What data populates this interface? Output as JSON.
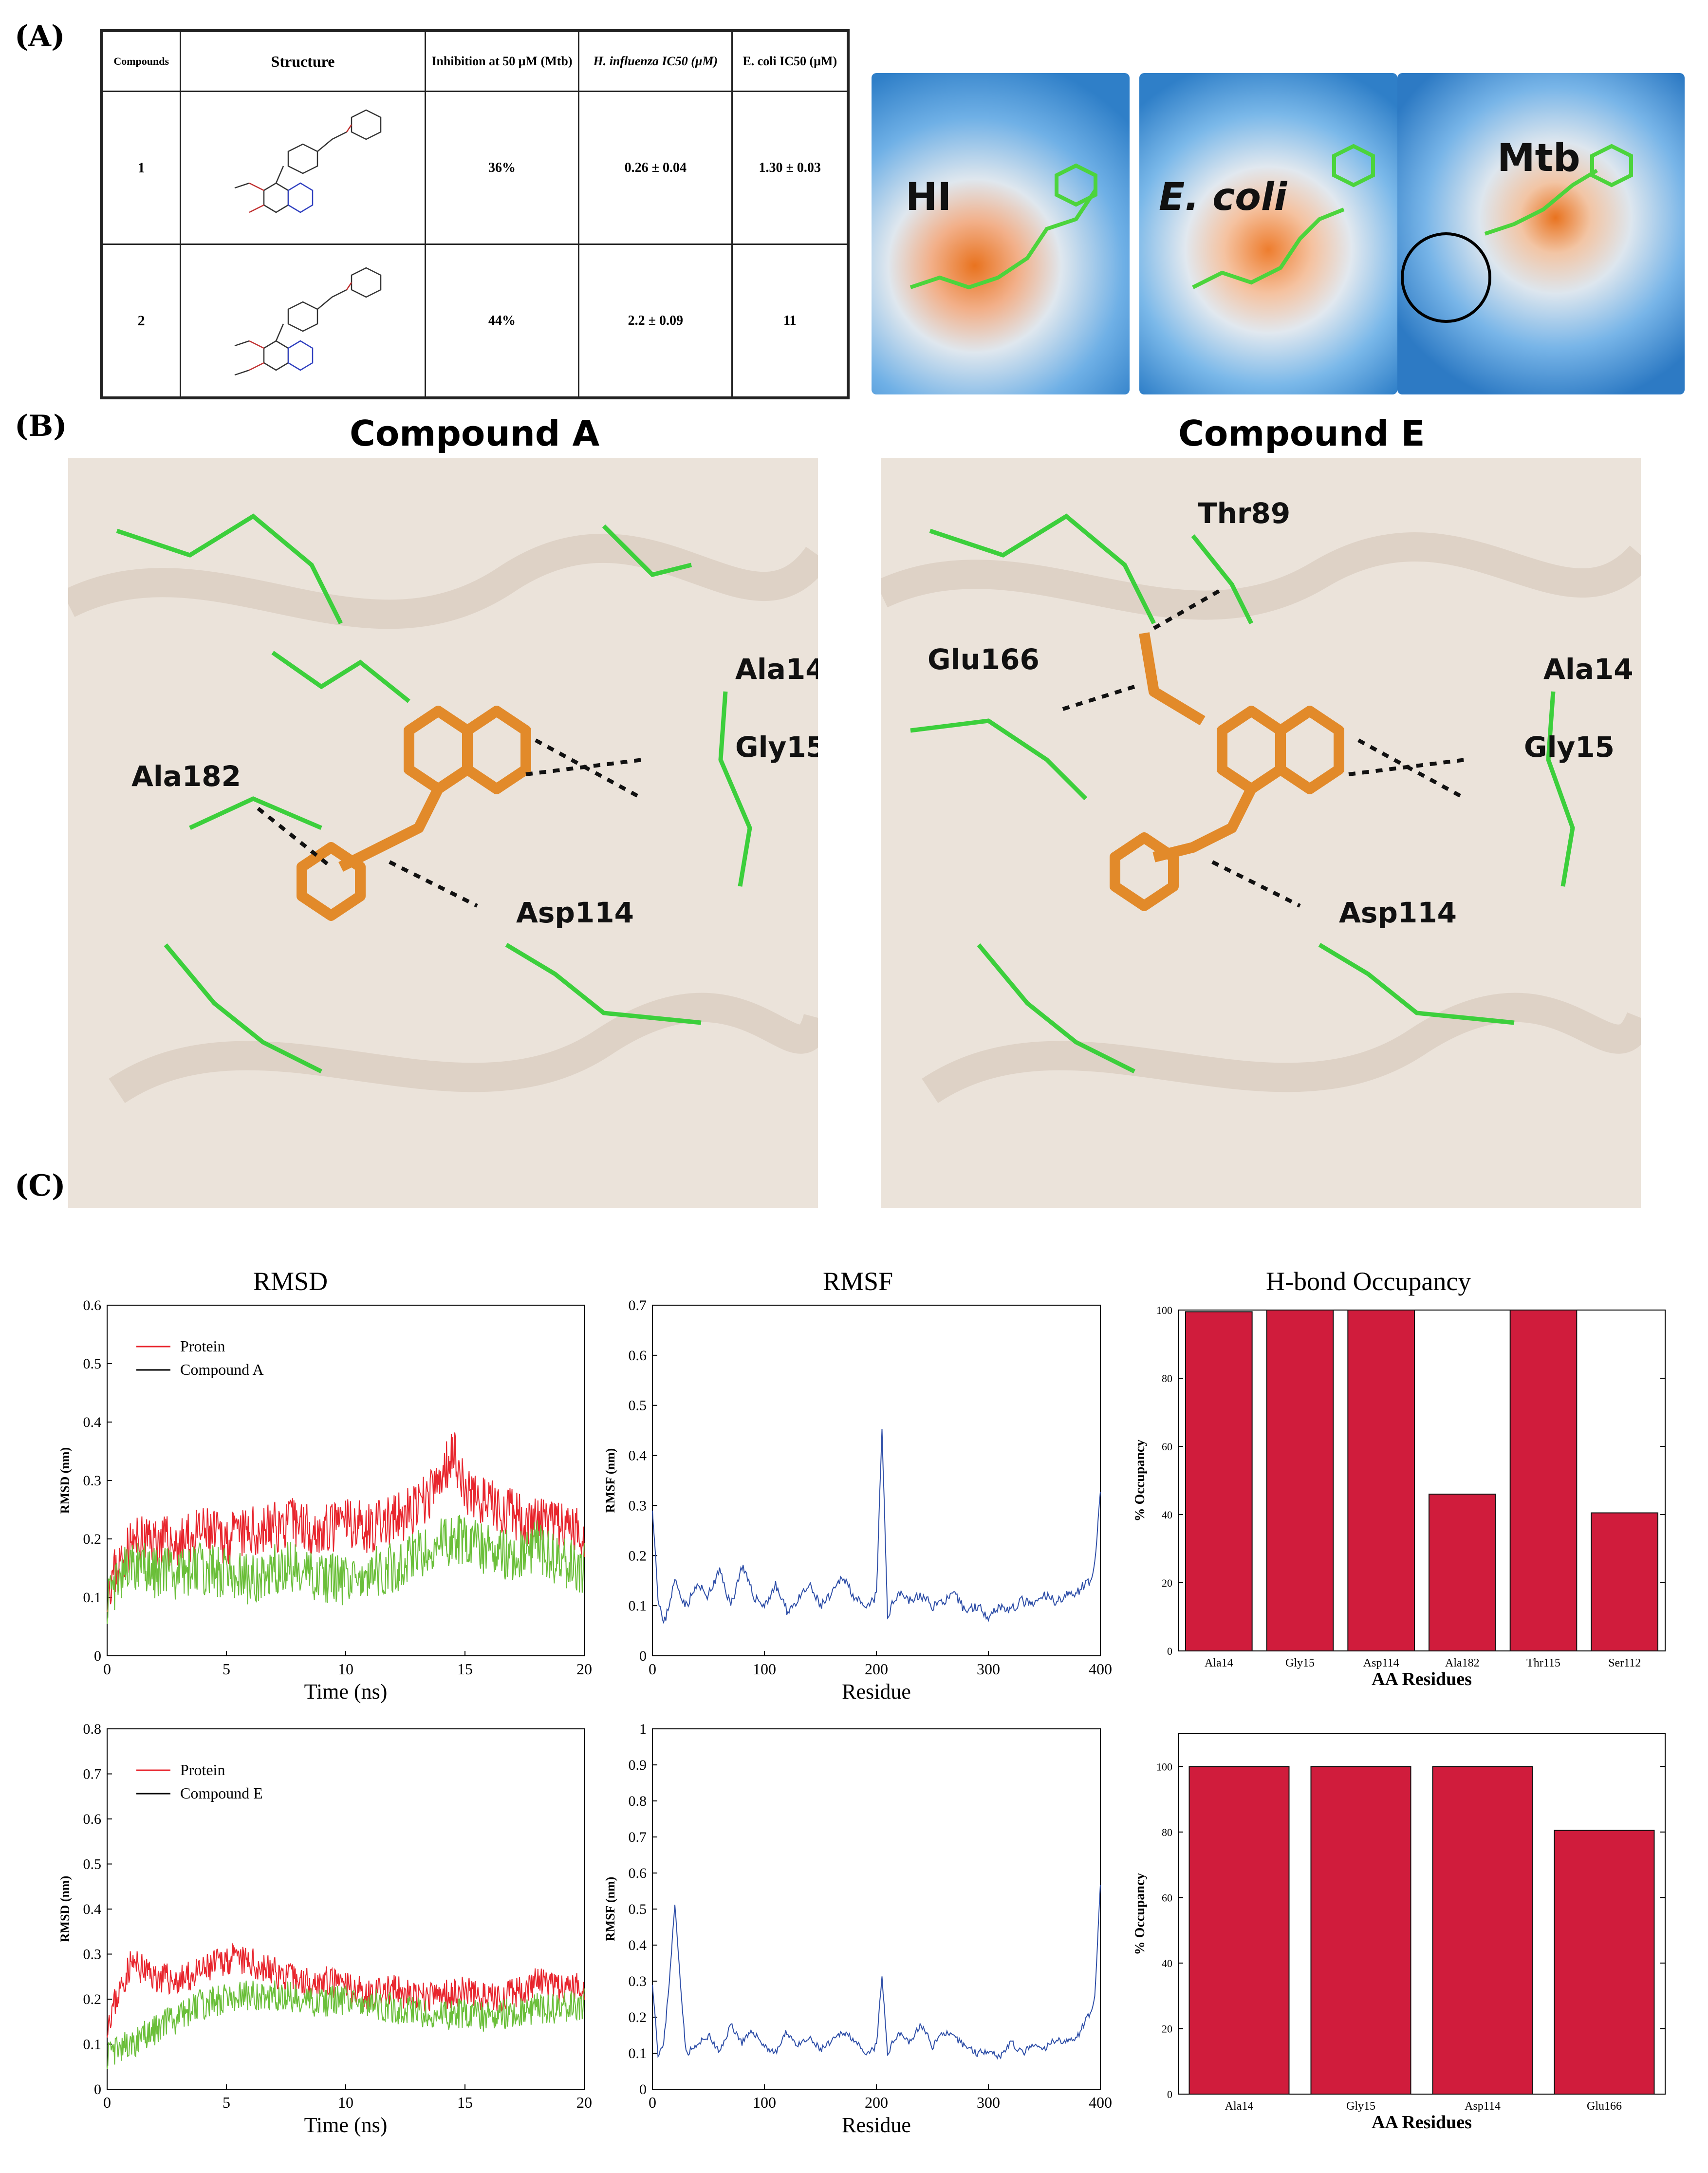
{
  "panel_labels": {
    "a": "(A)",
    "b": "(B)",
    "c": "(C)"
  },
  "table": {
    "headers": [
      "Compounds",
      "Structure",
      "Inhibition at 50 μM (Mtb)",
      "H. influenza IC50 (μM)",
      "E. coli IC50 (μM)"
    ],
    "rows": [
      {
        "compound": "1",
        "inhibition": "36%",
        "hi_ic50": "0.26 ± 0.04",
        "ecoli_ic50": "1.30 ± 0.03"
      },
      {
        "compound": "2",
        "inhibition": "44%",
        "hi_ic50": "2.2 ± 0.09",
        "ecoli_ic50": "11"
      }
    ]
  },
  "surface_labels": {
    "hi": "HI",
    "ecoli": "E. coli",
    "mtb": "Mtb"
  },
  "docking": {
    "left": {
      "title": "Compound A",
      "residues": [
        "Ala14",
        "Gly15",
        "Ala182",
        "Asp114"
      ]
    },
    "right": {
      "title": "Compound E",
      "residues": [
        "Thr89",
        "Glu166",
        "Ala14",
        "Gly15",
        "Asp114"
      ]
    }
  },
  "colors": {
    "protein": "#e8262e",
    "ligand": "#6bbf3a",
    "rmsf": "#2f4fa8",
    "bar": "#d01c3c",
    "carbon_ligand": "#e28a2a",
    "carbon_residue": "#3ccf3c"
  },
  "chart_data": [
    {
      "id": "rmsd-a",
      "type": "line",
      "title": "RMSD",
      "xlabel": "Time (ns)",
      "ylabel": "RMSD (nm)",
      "xlim": [
        0,
        20
      ],
      "ylim": [
        0,
        0.6
      ],
      "xticks": [
        0,
        5,
        10,
        15,
        20
      ],
      "yticks": [
        0,
        0.1,
        0.2,
        0.3,
        0.4,
        0.5,
        0.6
      ],
      "legend": {
        "position": "top-left",
        "entries": [
          "Protein",
          "Compound A"
        ]
      },
      "series": [
        {
          "name": "Protein",
          "x": [
            0,
            1,
            2,
            3,
            4,
            5,
            6,
            7,
            8,
            9,
            10,
            11,
            12,
            13,
            14,
            14.5,
            15,
            16,
            17,
            18,
            19,
            20
          ],
          "y": [
            0.12,
            0.19,
            0.2,
            0.19,
            0.21,
            0.2,
            0.21,
            0.22,
            0.23,
            0.21,
            0.23,
            0.22,
            0.23,
            0.25,
            0.3,
            0.36,
            0.28,
            0.26,
            0.24,
            0.23,
            0.22,
            0.21
          ]
        },
        {
          "name": "Compound A",
          "x": [
            0,
            1,
            2,
            3,
            4,
            5,
            6,
            7,
            8,
            9,
            10,
            11,
            12,
            13,
            14,
            15,
            16,
            17,
            18,
            19,
            20
          ],
          "y": [
            0.1,
            0.16,
            0.14,
            0.14,
            0.15,
            0.14,
            0.13,
            0.15,
            0.15,
            0.13,
            0.13,
            0.14,
            0.15,
            0.17,
            0.19,
            0.2,
            0.18,
            0.17,
            0.19,
            0.16,
            0.15
          ]
        }
      ]
    },
    {
      "id": "rmsf-a",
      "type": "line",
      "title": "RMSF",
      "xlabel": "Residue",
      "ylabel": "RMSF (nm)",
      "xlim": [
        0,
        400
      ],
      "ylim": [
        0,
        0.7
      ],
      "xticks": [
        0,
        100,
        200,
        300,
        400
      ],
      "yticks": [
        0,
        0.1,
        0.2,
        0.3,
        0.4,
        0.5,
        0.6,
        0.7
      ],
      "series": [
        {
          "name": "",
          "x": [
            0,
            5,
            10,
            20,
            30,
            40,
            50,
            60,
            70,
            80,
            90,
            100,
            110,
            120,
            130,
            140,
            150,
            160,
            170,
            180,
            190,
            200,
            205,
            210,
            220,
            230,
            240,
            250,
            260,
            270,
            280,
            290,
            300,
            310,
            320,
            330,
            340,
            350,
            360,
            370,
            380,
            390,
            395,
            400
          ],
          "y": [
            0.3,
            0.12,
            0.06,
            0.15,
            0.1,
            0.14,
            0.12,
            0.17,
            0.1,
            0.18,
            0.12,
            0.1,
            0.14,
            0.09,
            0.11,
            0.14,
            0.1,
            0.12,
            0.16,
            0.12,
            0.09,
            0.12,
            0.45,
            0.08,
            0.13,
            0.11,
            0.12,
            0.1,
            0.11,
            0.12,
            0.09,
            0.1,
            0.08,
            0.1,
            0.09,
            0.11,
            0.1,
            0.12,
            0.11,
            0.12,
            0.13,
            0.15,
            0.18,
            0.32
          ]
        }
      ]
    },
    {
      "id": "hbond-a",
      "type": "bar",
      "title": "H-bond Occupancy",
      "xlabel": "AA Residues",
      "ylabel": "% Occupancy",
      "ylim": [
        0,
        100
      ],
      "yticks": [
        0,
        20,
        40,
        60,
        80,
        100
      ],
      "categories": [
        "Ala14",
        "Gly15",
        "Asp114",
        "Ala182",
        "Thr115",
        "Ser112"
      ],
      "values": [
        99.5,
        100,
        100,
        46,
        100,
        40.5
      ]
    },
    {
      "id": "rmsd-e",
      "type": "line",
      "title": "",
      "xlabel": "Time (ns)",
      "ylabel": "RMSD (nm)",
      "xlim": [
        0,
        20
      ],
      "ylim": [
        0,
        0.8
      ],
      "xticks": [
        0,
        5,
        10,
        15,
        20
      ],
      "yticks": [
        0,
        0.1,
        0.2,
        0.3,
        0.4,
        0.5,
        0.6,
        0.7,
        0.8
      ],
      "legend": {
        "position": "top-left",
        "entries": [
          "Protein",
          "Compound E"
        ]
      },
      "series": [
        {
          "name": "Protein",
          "x": [
            0,
            1,
            2,
            3,
            4,
            5,
            6,
            7,
            8,
            9,
            10,
            11,
            12,
            13,
            14,
            15,
            16,
            17,
            18,
            19,
            20
          ],
          "y": [
            0.15,
            0.28,
            0.25,
            0.24,
            0.26,
            0.29,
            0.28,
            0.26,
            0.24,
            0.24,
            0.23,
            0.21,
            0.22,
            0.2,
            0.21,
            0.22,
            0.2,
            0.21,
            0.24,
            0.22,
            0.23
          ]
        },
        {
          "name": "Compound E",
          "x": [
            0,
            1,
            2,
            3,
            4,
            5,
            6,
            7,
            8,
            9,
            10,
            11,
            12,
            13,
            14,
            15,
            16,
            17,
            18,
            19,
            20
          ],
          "y": [
            0.08,
            0.1,
            0.13,
            0.16,
            0.19,
            0.2,
            0.21,
            0.21,
            0.2,
            0.19,
            0.2,
            0.19,
            0.18,
            0.17,
            0.16,
            0.17,
            0.16,
            0.17,
            0.18,
            0.18,
            0.19
          ]
        }
      ]
    },
    {
      "id": "rmsf-e",
      "type": "line",
      "title": "",
      "xlabel": "Residue",
      "ylabel": "RMSF (nm)",
      "xlim": [
        0,
        400
      ],
      "ylim": [
        0,
        1
      ],
      "xticks": [
        0,
        100,
        200,
        300,
        400
      ],
      "yticks": [
        0,
        0.1,
        0.2,
        0.3,
        0.4,
        0.5,
        0.6,
        0.7,
        0.8,
        0.9,
        1
      ],
      "series": [
        {
          "name": "",
          "x": [
            0,
            5,
            10,
            15,
            20,
            25,
            30,
            40,
            50,
            60,
            70,
            80,
            90,
            100,
            110,
            120,
            130,
            140,
            150,
            160,
            170,
            180,
            190,
            200,
            205,
            210,
            220,
            230,
            240,
            250,
            260,
            270,
            280,
            290,
            300,
            310,
            320,
            330,
            340,
            350,
            360,
            370,
            380,
            390,
            395,
            400
          ],
          "y": [
            0.3,
            0.1,
            0.12,
            0.3,
            0.51,
            0.3,
            0.1,
            0.12,
            0.15,
            0.1,
            0.18,
            0.13,
            0.16,
            0.12,
            0.1,
            0.16,
            0.12,
            0.14,
            0.11,
            0.13,
            0.16,
            0.14,
            0.09,
            0.12,
            0.31,
            0.1,
            0.16,
            0.13,
            0.18,
            0.12,
            0.16,
            0.14,
            0.12,
            0.1,
            0.11,
            0.09,
            0.13,
            0.1,
            0.12,
            0.11,
            0.14,
            0.13,
            0.15,
            0.21,
            0.25,
            0.56
          ]
        }
      ]
    },
    {
      "id": "hbond-e",
      "type": "bar",
      "title": "",
      "xlabel": "AA Residues",
      "ylabel": "% Occupancy",
      "ylim": [
        0,
        110
      ],
      "yticks": [
        0,
        20,
        40,
        60,
        80,
        100
      ],
      "categories": [
        "Ala14",
        "Gly15",
        "Asp114",
        "Glu166"
      ],
      "values": [
        100,
        100,
        100,
        80.5
      ]
    }
  ]
}
